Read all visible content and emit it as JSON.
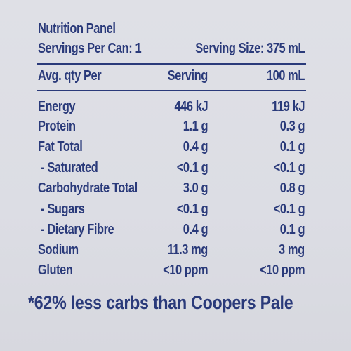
{
  "panel": {
    "title": "Nutrition Panel",
    "servings_per_can": "Servings Per Can: 1",
    "serving_size": "Serving Size: 375 mL"
  },
  "header": {
    "col_name": "Avg. qty Per",
    "col_serving": "Serving",
    "col_100ml": "100 mL"
  },
  "rows": [
    {
      "name": "Energy",
      "serving": "446 kJ",
      "per100": "119 kJ"
    },
    {
      "name": "Protein",
      "serving": "1.1 g",
      "per100": "0.3 g"
    },
    {
      "name": "Fat Total",
      "serving": "0.4 g",
      "per100": "0.1 g"
    },
    {
      "name": " - Saturated",
      "serving": "<0.1 g",
      "per100": "<0.1 g"
    },
    {
      "name": "Carbohydrate Total",
      "serving": "3.0 g",
      "per100": "0.8 g"
    },
    {
      "name": " - Sugars",
      "serving": "<0.1 g",
      "per100": "<0.1 g"
    },
    {
      "name": " - Dietary Fibre",
      "serving": "0.4 g",
      "per100": "0.1 g"
    },
    {
      "name": "Sodium",
      "serving": "11.3 mg",
      "per100": "3 mg"
    },
    {
      "name": "Gluten",
      "serving": "<10 ppm",
      "per100": "<10 ppm"
    }
  ],
  "footnote": "*62% less carbs than Coopers Pale",
  "colors": {
    "ink": "#2a3a7a",
    "background": "#dcdde3"
  }
}
